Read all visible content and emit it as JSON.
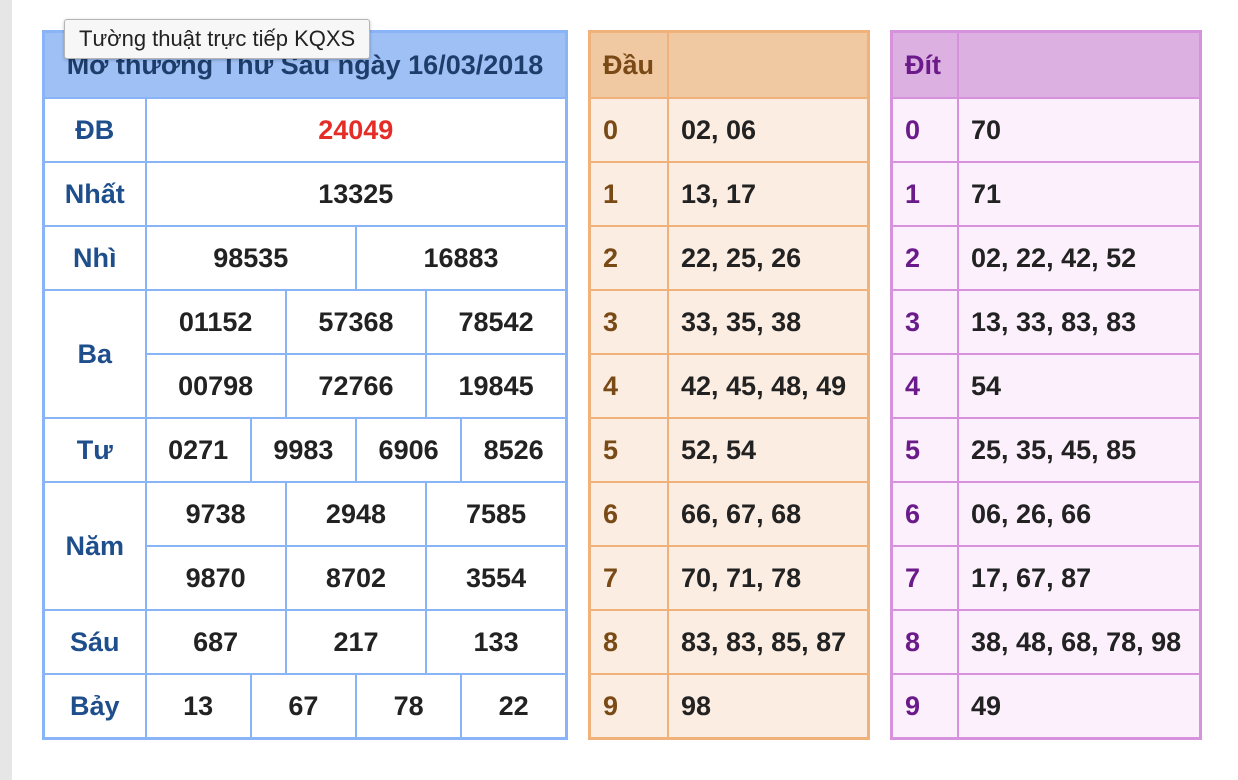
{
  "tooltip": "Tường thuật trực tiếp KQXS",
  "results": {
    "title": "Mở thưởng Thứ Sáu ngày 16/03/2018",
    "prizes": [
      {
        "label": "ĐB",
        "rows": [
          [
            "24049"
          ]
        ]
      },
      {
        "label": "Nhất",
        "rows": [
          [
            "13325"
          ]
        ]
      },
      {
        "label": "Nhì",
        "rows": [
          [
            "98535",
            "16883"
          ]
        ]
      },
      {
        "label": "Ba",
        "rows": [
          [
            "01152",
            "57368",
            "78542"
          ],
          [
            "00798",
            "72766",
            "19845"
          ]
        ]
      },
      {
        "label": "Tư",
        "rows": [
          [
            "0271",
            "9983",
            "6906",
            "8526"
          ]
        ]
      },
      {
        "label": "Năm",
        "rows": [
          [
            "9738",
            "2948",
            "7585"
          ],
          [
            "9870",
            "8702",
            "3554"
          ]
        ]
      },
      {
        "label": "Sáu",
        "rows": [
          [
            "687",
            "217",
            "133"
          ]
        ]
      },
      {
        "label": "Bảy",
        "rows": [
          [
            "13",
            "67",
            "78",
            "22"
          ]
        ]
      }
    ]
  },
  "dau": {
    "header": "Đầu",
    "rows": [
      {
        "key": "0",
        "value": "02, 06"
      },
      {
        "key": "1",
        "value": "13, 17"
      },
      {
        "key": "2",
        "value": "22, 25, 26"
      },
      {
        "key": "3",
        "value": "33, 35, 38"
      },
      {
        "key": "4",
        "value": "42, 45, 48, 49"
      },
      {
        "key": "5",
        "value": "52, 54"
      },
      {
        "key": "6",
        "value": "66, 67, 68"
      },
      {
        "key": "7",
        "value": "70, 71, 78"
      },
      {
        "key": "8",
        "value": "83, 83, 85, 87"
      },
      {
        "key": "9",
        "value": "98"
      }
    ]
  },
  "dit": {
    "header": "Đít",
    "rows": [
      {
        "key": "0",
        "value": "70"
      },
      {
        "key": "1",
        "value": "71"
      },
      {
        "key": "2",
        "value": "02, 22, 42, 52"
      },
      {
        "key": "3",
        "value": "13, 33, 83, 83"
      },
      {
        "key": "4",
        "value": "54"
      },
      {
        "key": "5",
        "value": "25, 35, 45, 85"
      },
      {
        "key": "6",
        "value": "06, 26, 66"
      },
      {
        "key": "7",
        "value": "17, 67, 87"
      },
      {
        "key": "8",
        "value": "38, 48, 68, 78, 98"
      },
      {
        "key": "9",
        "value": "49"
      }
    ]
  }
}
